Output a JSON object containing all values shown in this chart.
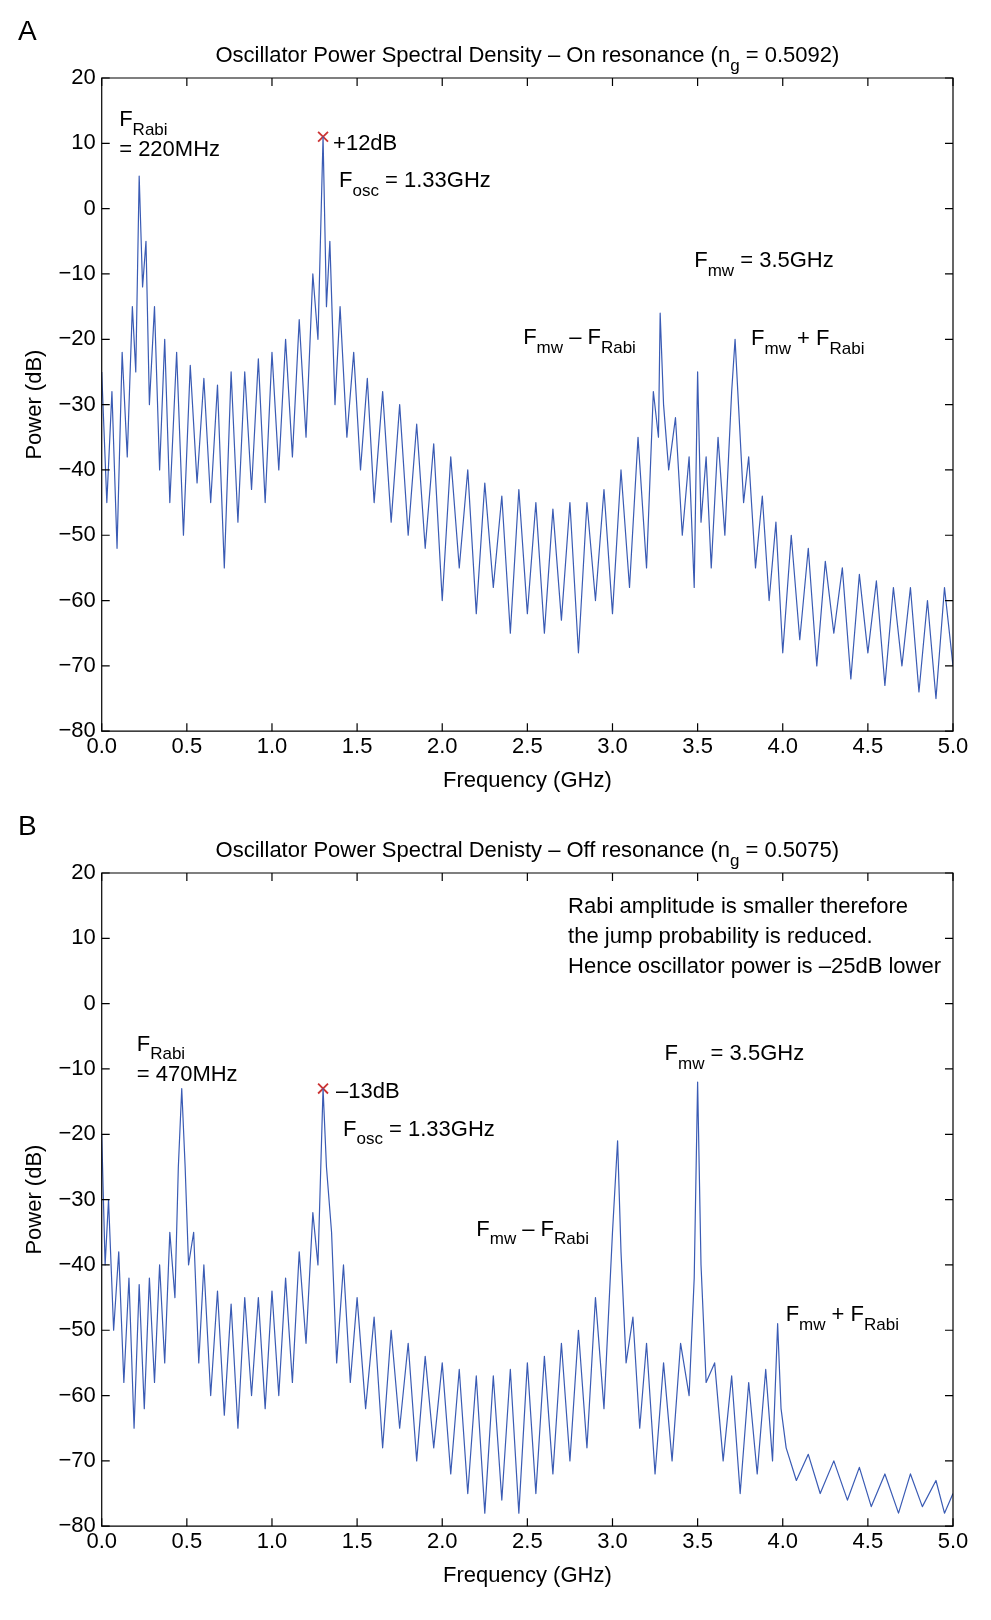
{
  "chart_data": [
    {
      "type": "line",
      "title": "Oscillator Power Spectral Density – On resonance (n$_{g}$ = 0.5092)",
      "xlabel": "Frequency (GHz)",
      "ylabel": "Power (dB)",
      "xlim": [
        0,
        5
      ],
      "ylim": [
        -80,
        20
      ],
      "xticks": [
        {
          "value": 0,
          "label": "0.0"
        },
        {
          "value": 0.5,
          "label": "0.5"
        },
        {
          "value": 1,
          "label": "1.0"
        },
        {
          "value": 1.5,
          "label": "1.5"
        },
        {
          "value": 2,
          "label": "2.0"
        },
        {
          "value": 2.5,
          "label": "2.5"
        },
        {
          "value": 3,
          "label": "3.0"
        },
        {
          "value": 3.5,
          "label": "3.5"
        },
        {
          "value": 4,
          "label": "4.0"
        },
        {
          "value": 4.5,
          "label": "4.5"
        },
        {
          "value": 5,
          "label": "5.0"
        }
      ],
      "yticks": [
        -80,
        -70,
        -60,
        -50,
        -40,
        -30,
        -20,
        -10,
        0,
        10,
        20
      ],
      "grid": false,
      "legend": false,
      "series": [
        {
          "color": "#3a5bb4",
          "marker": "none",
          "x": [
            0,
            0.03,
            0.06,
            0.09,
            0.12,
            0.15,
            0.18,
            0.2,
            0.22,
            0.24,
            0.26,
            0.28,
            0.31,
            0.34,
            0.37,
            0.4,
            0.44,
            0.48,
            0.52,
            0.56,
            0.6,
            0.64,
            0.68,
            0.72,
            0.76,
            0.8,
            0.84,
            0.88,
            0.92,
            0.96,
            1,
            1.04,
            1.08,
            1.12,
            1.16,
            1.2,
            1.24,
            1.27,
            1.3,
            1.32,
            1.34,
            1.37,
            1.4,
            1.44,
            1.48,
            1.52,
            1.56,
            1.6,
            1.65,
            1.7,
            1.75,
            1.8,
            1.85,
            1.9,
            1.95,
            2,
            2.05,
            2.1,
            2.15,
            2.2,
            2.25,
            2.3,
            2.35,
            2.4,
            2.45,
            2.5,
            2.55,
            2.6,
            2.65,
            2.7,
            2.75,
            2.8,
            2.85,
            2.9,
            2.95,
            3,
            3.05,
            3.1,
            3.15,
            3.2,
            3.24,
            3.27,
            3.28,
            3.3,
            3.33,
            3.37,
            3.41,
            3.45,
            3.48,
            3.5,
            3.52,
            3.55,
            3.58,
            3.62,
            3.66,
            3.7,
            3.72,
            3.74,
            3.77,
            3.8,
            3.84,
            3.88,
            3.92,
            3.96,
            4,
            4.05,
            4.1,
            4.15,
            4.2,
            4.25,
            4.3,
            4.35,
            4.4,
            4.45,
            4.5,
            4.55,
            4.6,
            4.65,
            4.7,
            4.75,
            4.8,
            4.85,
            4.9,
            4.95,
            5
          ],
          "values": [
            -25,
            -45,
            -28,
            -52,
            -22,
            -38,
            -15,
            -25,
            5,
            -12,
            -5,
            -30,
            -15,
            -40,
            -20,
            -45,
            -22,
            -50,
            -24,
            -42,
            -26,
            -45,
            -27,
            -55,
            -25,
            -48,
            -25,
            -43,
            -23,
            -45,
            -22,
            -40,
            -20,
            -38,
            -17,
            -35,
            -10,
            -20,
            11,
            -15,
            -5,
            -30,
            -15,
            -35,
            -22,
            -40,
            -26,
            -45,
            -28,
            -48,
            -30,
            -50,
            -33,
            -52,
            -36,
            -60,
            -38,
            -55,
            -40,
            -62,
            -42,
            -58,
            -44,
            -65,
            -43,
            -62,
            -45,
            -65,
            -46,
            -63,
            -45,
            -68,
            -45,
            -60,
            -43,
            -62,
            -40,
            -58,
            -35,
            -55,
            -28,
            -35,
            -16,
            -30,
            -40,
            -32,
            -50,
            -38,
            -58,
            -25,
            -48,
            -38,
            -55,
            -35,
            -50,
            -28,
            -20,
            -30,
            -45,
            -38,
            -55,
            -44,
            -60,
            -48,
            -68,
            -50,
            -66,
            -52,
            -70,
            -54,
            -65,
            -55,
            -72,
            -56,
            -68,
            -57,
            -73,
            -58,
            -70,
            -58,
            -74,
            -60,
            -75,
            -58,
            -70
          ]
        },
        {
          "type": "scatter",
          "color": "#cc3333",
          "marker": "cross",
          "x": [
            1.3
          ],
          "values": [
            11
          ]
        }
      ],
      "annotations": [
        "A",
        {
          "text": "F$_{Rabi}$\n= 220MHz",
          "x": 0.22,
          "y": 5
        },
        {
          "text": "+12dB",
          "x": 1.3,
          "y": 11
        },
        {
          "text": "F$_{osc}$ = 1.33GHz",
          "x": 1.3,
          "y": 11
        },
        "F$_{mw}$ = 3.5GHz",
        {
          "text": "F$_{mw}$ – F$_{Rabi}$",
          "x": 3.28,
          "y": -16
        },
        {
          "text": "F$_{mw}$ + F$_{Rabi}$",
          "x": 3.72,
          "y": -20
        }
      ]
    },
    {
      "type": "line",
      "title": "Oscillator Power Spectral Denisty – Off resonance (n$_{g}$ = 0.5075)",
      "xlabel": "Frequency (GHz)",
      "ylabel": "Power (dB)",
      "xlim": [
        0,
        5
      ],
      "ylim": [
        -80,
        20
      ],
      "xticks": [
        {
          "value": 0,
          "label": "0.0"
        },
        {
          "value": 0.5,
          "label": "0.5"
        },
        {
          "value": 1,
          "label": "1.0"
        },
        {
          "value": 1.5,
          "label": "1.5"
        },
        {
          "value": 2,
          "label": "2.0"
        },
        {
          "value": 2.5,
          "label": "2.5"
        },
        {
          "value": 3,
          "label": "3.0"
        },
        {
          "value": 3.5,
          "label": "3.5"
        },
        {
          "value": 4,
          "label": "4.0"
        },
        {
          "value": 4.5,
          "label": "4.5"
        },
        {
          "value": 5,
          "label": "5.0"
        }
      ],
      "yticks": [
        -80,
        -70,
        -60,
        -50,
        -40,
        -30,
        -20,
        -10,
        0,
        10,
        20
      ],
      "grid": false,
      "legend": false,
      "series": [
        {
          "color": "#3a5bb4",
          "marker": "none",
          "x": [
            0,
            0.02,
            0.04,
            0.07,
            0.1,
            0.13,
            0.16,
            0.19,
            0.22,
            0.25,
            0.28,
            0.31,
            0.34,
            0.37,
            0.4,
            0.43,
            0.45,
            0.47,
            0.49,
            0.51,
            0.54,
            0.57,
            0.6,
            0.64,
            0.68,
            0.72,
            0.76,
            0.8,
            0.84,
            0.88,
            0.92,
            0.96,
            1,
            1.04,
            1.08,
            1.12,
            1.16,
            1.2,
            1.24,
            1.27,
            1.3,
            1.32,
            1.35,
            1.38,
            1.42,
            1.46,
            1.5,
            1.55,
            1.6,
            1.65,
            1.7,
            1.75,
            1.8,
            1.85,
            1.9,
            1.95,
            2,
            2.05,
            2.1,
            2.15,
            2.2,
            2.25,
            2.3,
            2.35,
            2.4,
            2.45,
            2.5,
            2.55,
            2.6,
            2.65,
            2.7,
            2.75,
            2.8,
            2.85,
            2.9,
            2.95,
            3,
            3.03,
            3.05,
            3.08,
            3.12,
            3.16,
            3.2,
            3.25,
            3.3,
            3.35,
            3.4,
            3.45,
            3.48,
            3.5,
            3.52,
            3.55,
            3.6,
            3.65,
            3.7,
            3.75,
            3.8,
            3.85,
            3.9,
            3.94,
            3.97,
            3.99,
            4.02,
            4.08,
            4.15,
            4.22,
            4.3,
            4.38,
            4.45,
            4.52,
            4.6,
            4.68,
            4.75,
            4.82,
            4.9,
            4.95,
            5
          ],
          "values": [
            -20,
            -40,
            -30,
            -50,
            -38,
            -58,
            -42,
            -65,
            -43,
            -62,
            -42,
            -58,
            -40,
            -55,
            -35,
            -45,
            -25,
            -13,
            -25,
            -40,
            -35,
            -55,
            -40,
            -60,
            -44,
            -63,
            -46,
            -65,
            -45,
            -60,
            -45,
            -62,
            -44,
            -60,
            -42,
            -58,
            -38,
            -52,
            -32,
            -40,
            -13,
            -25,
            -35,
            -55,
            -40,
            -58,
            -45,
            -62,
            -48,
            -68,
            -50,
            -65,
            -52,
            -70,
            -54,
            -68,
            -55,
            -72,
            -56,
            -75,
            -57,
            -78,
            -57,
            -76,
            -56,
            -78,
            -55,
            -75,
            -54,
            -72,
            -52,
            -70,
            -50,
            -68,
            -45,
            -62,
            -35,
            -21,
            -38,
            -55,
            -48,
            -65,
            -52,
            -72,
            -55,
            -70,
            -52,
            -60,
            -42,
            -12,
            -40,
            -58,
            -55,
            -70,
            -57,
            -75,
            -58,
            -72,
            -56,
            -70,
            -49,
            -62,
            -68,
            -73,
            -69,
            -75,
            -70,
            -76,
            -71,
            -77,
            -72,
            -78,
            -72,
            -77,
            -73,
            -78,
            -75
          ]
        },
        {
          "type": "scatter",
          "color": "#cc3333",
          "marker": "cross",
          "x": [
            1.3
          ],
          "values": [
            -13
          ]
        }
      ],
      "annotations": [
        "B",
        "Rabi amplitude is smaller therefore\nthe jump probability is reduced.\nHence oscillator power is –25dB lower",
        {
          "text": "F$_{Rabi}$\n= 470MHz",
          "x": 0.47,
          "y": -13
        },
        {
          "text": "–13dB",
          "x": 1.3,
          "y": -13
        },
        {
          "text": "F$_{osc}$ = 1.33GHz",
          "x": 1.3,
          "y": -13
        },
        {
          "text": "F$_{mw}$ = 3.5GHz",
          "x": 3.5,
          "y": -12
        },
        "F$_{mw}$ – F$_{Rabi}$",
        {
          "text": "F$_{mw}$ + F$_{Rabi}$",
          "x": 3.97,
          "y": -49
        }
      ]
    }
  ]
}
